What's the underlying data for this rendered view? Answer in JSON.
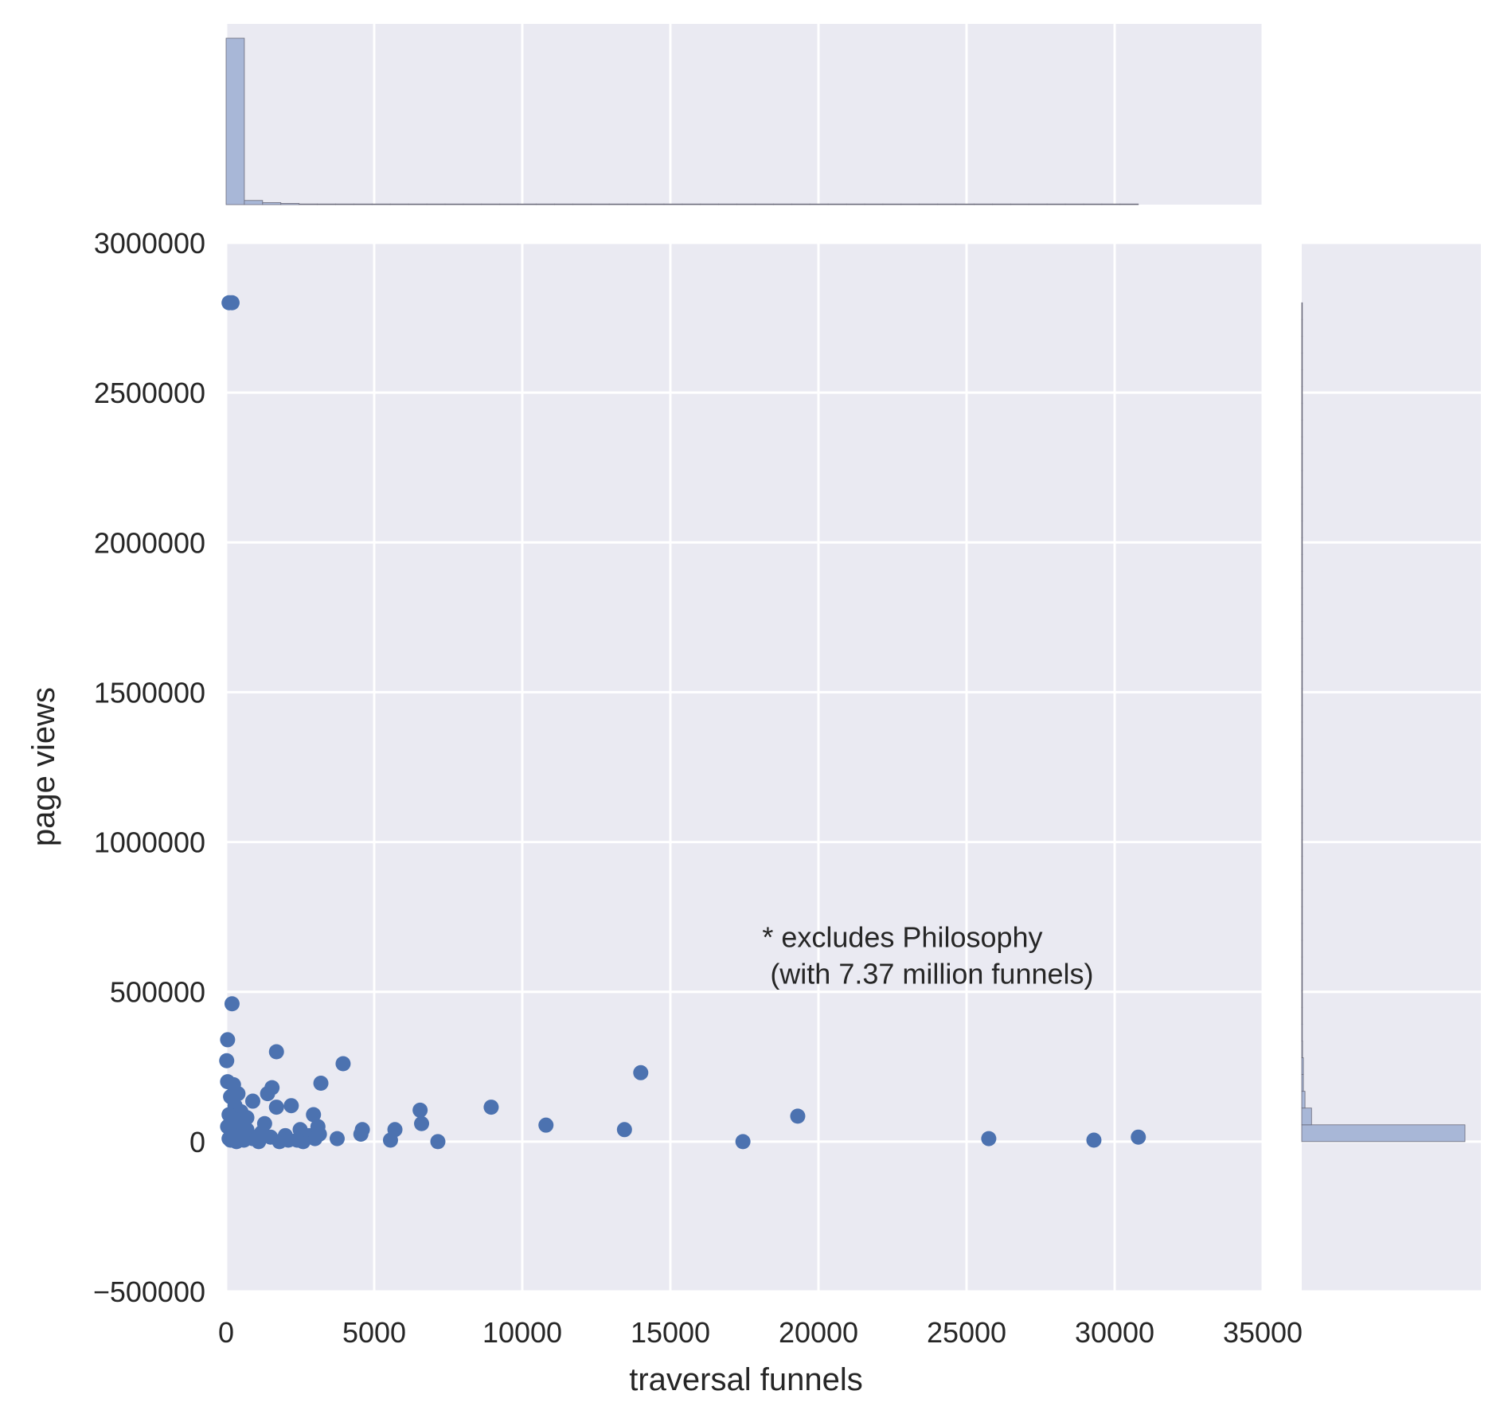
{
  "chart_data": {
    "type": "scatter",
    "title": "",
    "xlabel": "traversal funnels",
    "ylabel": "page views",
    "xlim": [
      0,
      35000
    ],
    "ylim": [
      -500000,
      3000000
    ],
    "x_ticks": [
      0,
      5000,
      10000,
      15000,
      20000,
      25000,
      30000,
      35000
    ],
    "y_ticks": [
      -500000,
      0,
      500000,
      1000000,
      1500000,
      2000000,
      2500000,
      3000000
    ],
    "grid": true,
    "annotation": "* excludes Philosophy\n (with 7.37 million funnels)",
    "annotation_lines": [
      "* excludes Philosophy",
      " (with 7.37 million funnels)"
    ],
    "annotation_anchor": {
      "x": 18100,
      "y": 650000
    },
    "colors": {
      "background": "#EAEAF2",
      "grid": "#FFFFFF",
      "points": "#4C72B0",
      "histogram_fill": "#A8B7D7",
      "histogram_edge": "#6A6A7A"
    },
    "points": [
      {
        "x": 100,
        "y": 2800000
      },
      {
        "x": 200,
        "y": 2800000
      },
      {
        "x": 200,
        "y": 460000
      },
      {
        "x": 50,
        "y": 340000
      },
      {
        "x": 20,
        "y": 270000
      },
      {
        "x": 1700,
        "y": 300000
      },
      {
        "x": 3950,
        "y": 260000
      },
      {
        "x": 3200,
        "y": 195000
      },
      {
        "x": 14000,
        "y": 230000
      },
      {
        "x": 50,
        "y": 200000
      },
      {
        "x": 250,
        "y": 190000
      },
      {
        "x": 1550,
        "y": 180000
      },
      {
        "x": 400,
        "y": 160000
      },
      {
        "x": 1400,
        "y": 160000
      },
      {
        "x": 900,
        "y": 135000
      },
      {
        "x": 2200,
        "y": 120000
      },
      {
        "x": 1700,
        "y": 115000
      },
      {
        "x": 8950,
        "y": 115000
      },
      {
        "x": 6550,
        "y": 105000
      },
      {
        "x": 2950,
        "y": 90000
      },
      {
        "x": 19300,
        "y": 85000
      },
      {
        "x": 10800,
        "y": 55000
      },
      {
        "x": 6600,
        "y": 60000
      },
      {
        "x": 1300,
        "y": 60000
      },
      {
        "x": 3100,
        "y": 50000
      },
      {
        "x": 2500,
        "y": 40000
      },
      {
        "x": 5700,
        "y": 40000
      },
      {
        "x": 4600,
        "y": 40000
      },
      {
        "x": 13450,
        "y": 40000
      },
      {
        "x": 3150,
        "y": 25000
      },
      {
        "x": 4550,
        "y": 25000
      },
      {
        "x": 2800,
        "y": 20000
      },
      {
        "x": 2000,
        "y": 20000
      },
      {
        "x": 30800,
        "y": 15000
      },
      {
        "x": 3750,
        "y": 10000
      },
      {
        "x": 3000,
        "y": 10000
      },
      {
        "x": 25750,
        "y": 10000
      },
      {
        "x": 29300,
        "y": 5000
      },
      {
        "x": 5550,
        "y": 5000
      },
      {
        "x": 17450,
        "y": 0
      },
      {
        "x": 7150,
        "y": 0
      },
      {
        "x": 1800,
        "y": 0
      },
      {
        "x": 2600,
        "y": 0
      },
      {
        "x": 2400,
        "y": 5000
      },
      {
        "x": 1100,
        "y": 0
      },
      {
        "x": 1500,
        "y": 15000
      },
      {
        "x": 800,
        "y": 20000
      },
      {
        "x": 600,
        "y": 30000
      },
      {
        "x": 700,
        "y": 80000
      },
      {
        "x": 500,
        "y": 100000
      },
      {
        "x": 300,
        "y": 120000
      },
      {
        "x": 150,
        "y": 150000
      },
      {
        "x": 400,
        "y": 60000
      },
      {
        "x": 200,
        "y": 40000
      },
      {
        "x": 100,
        "y": 90000
      },
      {
        "x": 600,
        "y": 5000
      },
      {
        "x": 350,
        "y": 0
      },
      {
        "x": 100,
        "y": 10000
      },
      {
        "x": 50,
        "y": 50000
      },
      {
        "x": 900,
        "y": 10000
      },
      {
        "x": 1200,
        "y": 30000
      },
      {
        "x": 250,
        "y": 75000
      },
      {
        "x": 450,
        "y": 20000
      },
      {
        "x": 150,
        "y": 5000
      },
      {
        "x": 700,
        "y": 40000
      },
      {
        "x": 2100,
        "y": 5000
      }
    ],
    "x_histogram": {
      "bin_width": 616,
      "bins_start": 0,
      "relative_heights": [
        1.0,
        0.025,
        0.012,
        0.007,
        0.004,
        0.002,
        0.001,
        0.0,
        0.0,
        0.0,
        0.0,
        0.0,
        0.0,
        0.0,
        0.0,
        0.0,
        0.0,
        0.0,
        0.0,
        0.0,
        0.0,
        0.0,
        0.0,
        0.0,
        0.0,
        0.0,
        0.0,
        0.0,
        0.0,
        0.0,
        0.0,
        0.0,
        0.0,
        0.0,
        0.0,
        0.0,
        0.0,
        0.0,
        0.0,
        0.0,
        0.0,
        0.0,
        0.0,
        0.0,
        0.0,
        0.0,
        0.0,
        0.0,
        0.0,
        0.0
      ]
    },
    "y_histogram": {
      "bin_width": 56000,
      "bins_start": 0,
      "relative_widths": [
        1.0,
        0.06,
        0.02,
        0.01,
        0.01,
        0.005,
        0.004,
        0.003,
        0.002,
        0.002,
        0.002,
        0.002,
        0.002,
        0.002,
        0.002,
        0.002,
        0.002,
        0.002,
        0.002,
        0.002,
        0.002,
        0.002,
        0.002,
        0.002,
        0.002,
        0.002,
        0.002,
        0.002,
        0.002,
        0.002,
        0.002,
        0.002,
        0.002,
        0.002,
        0.002,
        0.002,
        0.002,
        0.002,
        0.002,
        0.002,
        0.002,
        0.002,
        0.002,
        0.002,
        0.002,
        0.002,
        0.002,
        0.002,
        0.002,
        0.002
      ]
    }
  }
}
